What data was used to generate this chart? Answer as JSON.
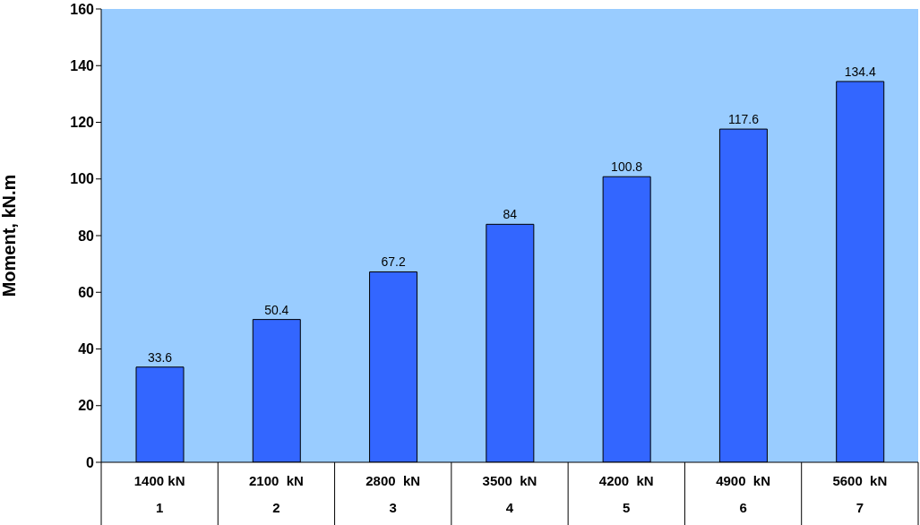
{
  "chart_data": {
    "type": "bar",
    "ylabel": "Moment, kN.m",
    "categories": [
      "1400 kN\n1",
      "2100  kN\n2",
      "2800  kN\n3",
      "3500  kN\n4",
      "4200  kN\n5",
      "4900  kN\n6",
      "5600  kN\n7"
    ],
    "values": [
      33.6,
      50.4,
      67.2,
      84,
      100.8,
      117.6,
      134.4
    ],
    "color": "#3366ff",
    "ylim": [
      0,
      160
    ],
    "yticks": [
      0,
      20,
      40,
      60,
      80,
      100,
      120,
      140,
      160
    ],
    "grid": false,
    "data_labels": true,
    "legend": false
  }
}
